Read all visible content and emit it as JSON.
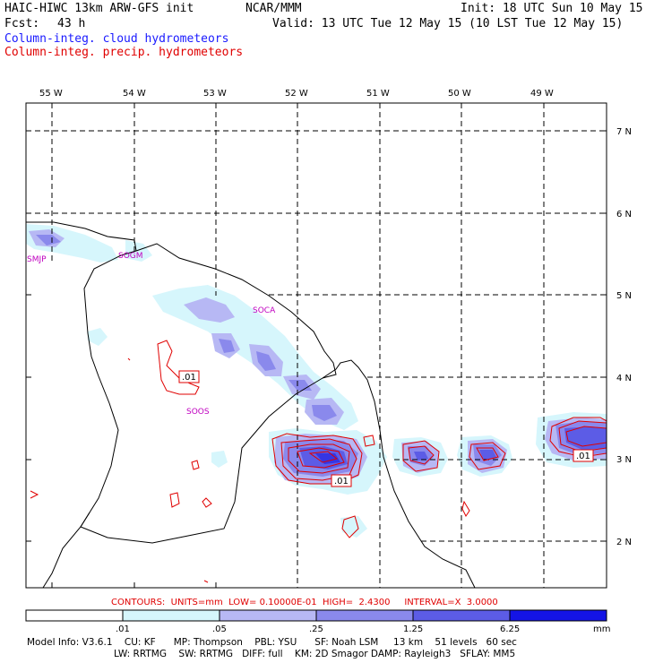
{
  "header": {
    "model_title": "HAIC-HIWC 13km ARW-GFS init",
    "org": "NCAR/MMM",
    "init": "Init: 18 UTC Sun 10 May 15",
    "fcst_label": "Fcst:",
    "fcst_value": "43 h",
    "valid": "Valid: 13 UTC Tue 12 May 15 (10 LST Tue 12 May 15)",
    "field_cloud": "Column-integ. cloud hydrometeors",
    "field_precip": "Column-integ. precip. hydrometeors"
  },
  "map": {
    "lon_labels": [
      "55 W",
      "54 W",
      "53 W",
      "52 W",
      "51 W",
      "50 W",
      "49 W"
    ],
    "lat_labels": [
      "7 N",
      "6 N",
      "5 N",
      "4 N",
      "3 N",
      "2 N"
    ],
    "stations": [
      "SMJP",
      "SOGM",
      "SOCA",
      "SOOS"
    ],
    "contour_labels": [
      ".01",
      ".01",
      ".01"
    ]
  },
  "contours_line": {
    "text": "CONTOURS:  UNITS=mm  LOW= 0.10000E-01  HIGH=  2.4300     INTERVAL=X  3.0000"
  },
  "colorbar": {
    "colors": [
      "#ffffff",
      "#d6f6fc",
      "#b7b8f4",
      "#8a89ec",
      "#5c5ce6",
      "#3535e4",
      "#1414e6"
    ],
    "labels": [
      ".01",
      ".05",
      ".25",
      "1.25",
      "6.25"
    ],
    "units": "mm"
  },
  "footer": {
    "line1": "Model Info: V3.6.1    CU: KF      MP: Thompson    PBL: YSU      SF: Noah LSM     13 km    51 levels   60 sec",
    "line2": "LW: RRTMG    SW: RRTMG   DIFF: full    KM: 2D Smagor DAMP: Rayleigh3   SFLAY: MM5"
  }
}
